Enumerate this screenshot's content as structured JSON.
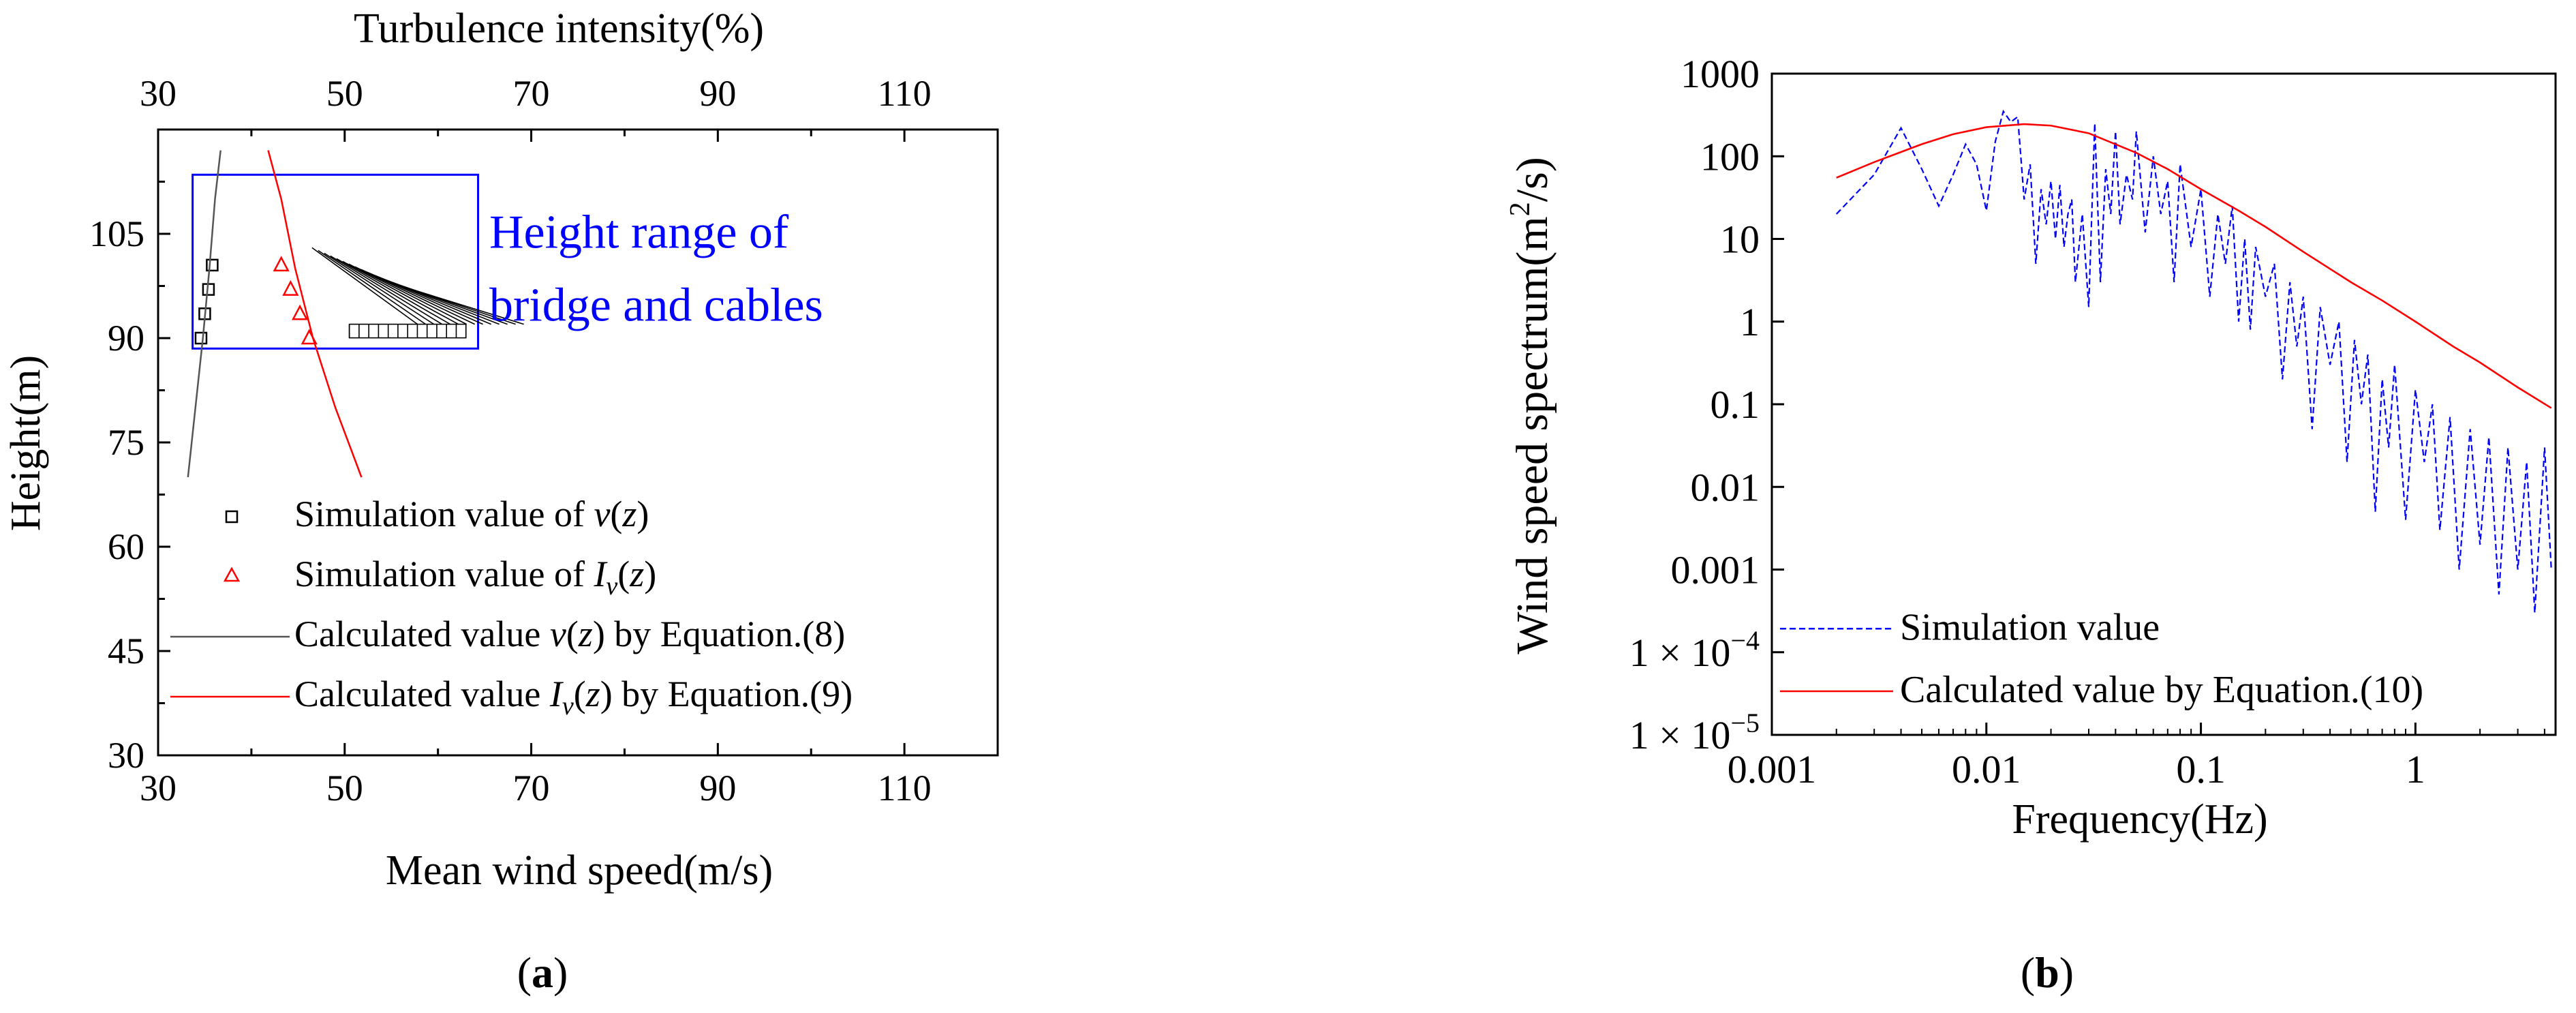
{
  "chart_data": [
    {
      "type": "scatter",
      "panel_label": "a",
      "xlabel": "Mean wind speed(m/s)",
      "x2label": "Turbulence intensity(%)",
      "ylabel": "Height(m)",
      "xlim": [
        30,
        120
      ],
      "x2lim": [
        30,
        120
      ],
      "ylim": [
        30,
        120
      ],
      "xticks": [
        "30",
        "50",
        "70",
        "90",
        "110"
      ],
      "x2ticks": [
        "30",
        "50",
        "70",
        "90",
        "110"
      ],
      "yticks": [
        "30",
        "45",
        "60",
        "75",
        "90",
        "105"
      ],
      "annotation": {
        "line1": "Height range of",
        "line2": "bridge and cables",
        "box_x": [
          33.7,
          64.3
        ],
        "box_y": [
          88.5,
          113.5
        ]
      },
      "series": [
        {
          "name": "Simulation value of v(z)",
          "legend": {
            "pre": "Simulation value of ",
            "italic": "v",
            "mid": "(",
            "italic2": "z",
            "post": ")"
          },
          "kind": "marker-square",
          "color": "#000000",
          "x": [
            34.6,
            35.0,
            35.4,
            35.8
          ],
          "y": [
            90,
            93.5,
            97,
            100.5
          ]
        },
        {
          "name": "Simulation value of Iv(z)",
          "legend": {
            "pre": "Simulation value of ",
            "italic": "I",
            "sub": "v",
            "mid": "(",
            "italic2": "z",
            "post": ")"
          },
          "kind": "marker-triangle",
          "color": "#ff0000",
          "x": [
            43.2,
            44.2,
            45.2,
            46.2
          ],
          "y": [
            100.5,
            97,
            93.5,
            90
          ]
        },
        {
          "name": "Calculated value v(z) by Equation.(8)",
          "legend": {
            "pre": "Calculated value ",
            "italic": "v",
            "mid": "(",
            "italic2": "z",
            "post": ") by Equation.(8)"
          },
          "kind": "line",
          "color": "#555555",
          "x": [
            33.2,
            34.0,
            34.8,
            35.5,
            36.1,
            36.7
          ],
          "y": [
            70,
            80,
            90,
            100,
            110,
            117
          ]
        },
        {
          "name": "Calculated value Iv(z) by Equation.(9)",
          "legend": {
            "pre": "Calculated value ",
            "italic": "I",
            "sub": "v",
            "mid": "(",
            "italic2": "z",
            "post": ") by Equation.(9)"
          },
          "kind": "line",
          "color": "#ff0000",
          "x": [
            51.8,
            49.0,
            46.6,
            44.7,
            43.2,
            41.8
          ],
          "y": [
            70,
            80,
            90,
            100,
            110,
            117
          ]
        }
      ]
    },
    {
      "type": "line",
      "panel_label": "b",
      "xlabel": "Frequency(Hz)",
      "ylabel": "Wind speed spectrum(m²/s)",
      "ylabel_parts": {
        "pre": "Wind speed spectrum(m",
        "sup": "2",
        "post": "/s)"
      },
      "xscale": "log",
      "yscale": "log",
      "xlim": [
        0.001,
        4.5
      ],
      "ylim": [
        1e-05,
        1000
      ],
      "xticks": [
        {
          "v": 0.001,
          "label": "0.001"
        },
        {
          "v": 0.01,
          "label": "0.01"
        },
        {
          "v": 0.1,
          "label": "0.1"
        },
        {
          "v": 1,
          "label": "1"
        }
      ],
      "yticks": [
        {
          "v": 1000,
          "label": "1000"
        },
        {
          "v": 100,
          "label": "100"
        },
        {
          "v": 10,
          "label": "10"
        },
        {
          "v": 1,
          "label": "1"
        },
        {
          "v": 0.1,
          "label": "0.1"
        },
        {
          "v": 0.01,
          "label": "0.01"
        },
        {
          "v": 0.001,
          "label": "0.001"
        },
        {
          "v": 0.0001,
          "label": "1 × 10",
          "exp": "−4"
        },
        {
          "v": 1e-05,
          "label": "1 × 10",
          "exp": "−5"
        }
      ],
      "series": [
        {
          "name": "Simulation value",
          "style": "dashed",
          "color": "#0000ff",
          "x": [
            0.002,
            0.003,
            0.004,
            0.005,
            0.006,
            0.007,
            0.008,
            0.009,
            0.01,
            0.011,
            0.012,
            0.013,
            0.014,
            0.015,
            0.016,
            0.017,
            0.018,
            0.019,
            0.02,
            0.021,
            0.022,
            0.023,
            0.024,
            0.025,
            0.026,
            0.028,
            0.03,
            0.032,
            0.034,
            0.036,
            0.038,
            0.04,
            0.042,
            0.045,
            0.048,
            0.05,
            0.055,
            0.06,
            0.065,
            0.07,
            0.075,
            0.08,
            0.09,
            0.1,
            0.11,
            0.12,
            0.13,
            0.14,
            0.15,
            0.16,
            0.17,
            0.18,
            0.2,
            0.22,
            0.24,
            0.26,
            0.28,
            0.3,
            0.33,
            0.36,
            0.4,
            0.44,
            0.48,
            0.52,
            0.56,
            0.6,
            0.65,
            0.7,
            0.75,
            0.8,
            0.9,
            1.0,
            1.1,
            1.2,
            1.3,
            1.45,
            1.6,
            1.8,
            2.0,
            2.2,
            2.45,
            2.7,
            3.0,
            3.3,
            3.6,
            4.0,
            4.3
          ],
          "y": [
            20,
            60,
            220,
            70,
            25,
            60,
            140,
            80,
            22,
            150,
            350,
            260,
            300,
            30,
            80,
            5,
            40,
            15,
            50,
            10,
            45,
            8,
            20,
            30,
            3,
            20,
            1.5,
            250,
            3,
            70,
            20,
            200,
            15,
            60,
            30,
            200,
            12,
            100,
            20,
            50,
            3,
            80,
            8,
            40,
            2,
            20,
            5,
            25,
            1,
            10,
            0.8,
            8,
            2,
            5,
            0.2,
            3,
            0.5,
            2,
            0.05,
            1.5,
            0.3,
            1,
            0.02,
            0.6,
            0.1,
            0.4,
            0.005,
            0.2,
            0.03,
            0.3,
            0.004,
            0.15,
            0.02,
            0.1,
            0.003,
            0.07,
            0.001,
            0.05,
            0.002,
            0.04,
            0.0005,
            0.03,
            0.001,
            0.02,
            0.0003,
            0.03,
            0.001
          ]
        },
        {
          "name": "Calculated value by Equation.(10)",
          "style": "solid",
          "color": "#ff0000",
          "x": [
            0.002,
            0.003,
            0.005,
            0.007,
            0.01,
            0.015,
            0.02,
            0.03,
            0.05,
            0.07,
            0.1,
            0.15,
            0.2,
            0.3,
            0.5,
            0.7,
            1,
            1.5,
            2,
            3,
            4.3
          ],
          "y": [
            55,
            85,
            140,
            185,
            225,
            245,
            235,
            190,
            110,
            70,
            40,
            22,
            14,
            7,
            3,
            1.8,
            1,
            0.5,
            0.32,
            0.16,
            0.09
          ]
        }
      ]
    }
  ]
}
